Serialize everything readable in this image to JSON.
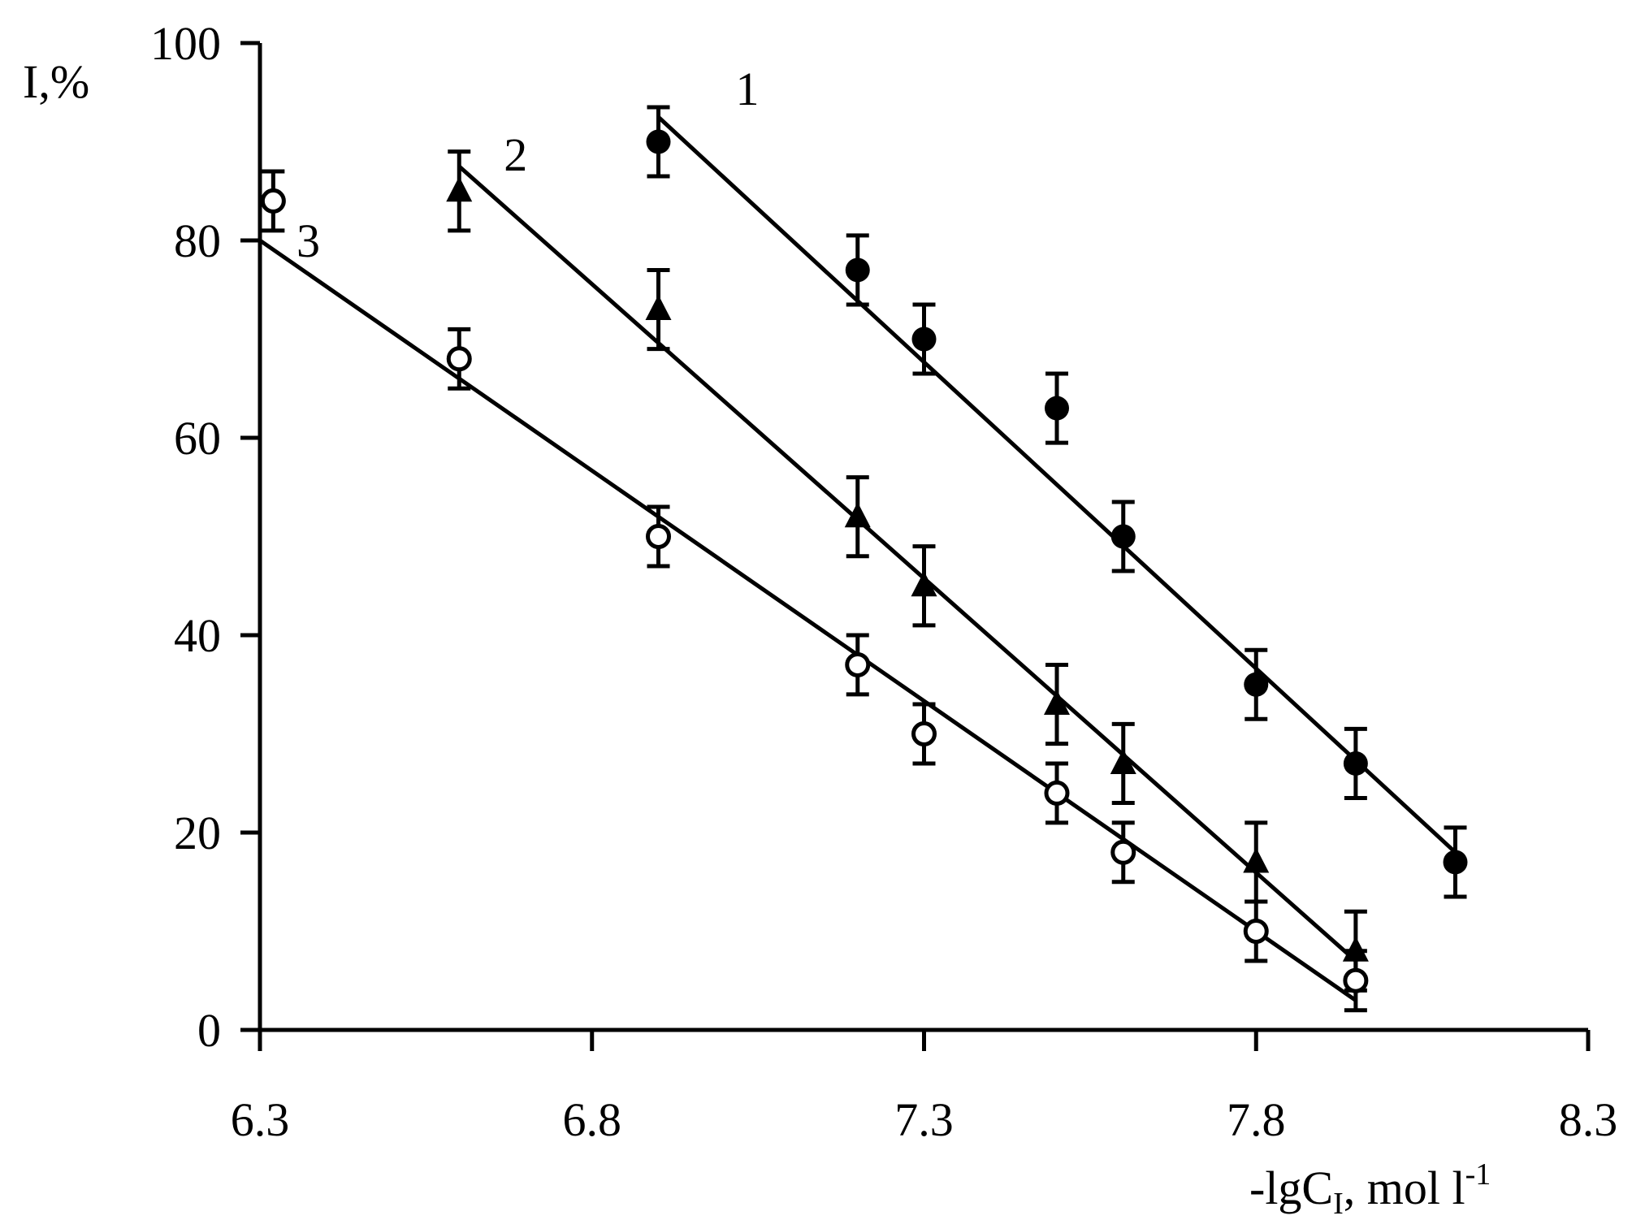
{
  "chart_data": {
    "type": "scatter",
    "title": "",
    "xlabel": "-lgC",
    "xlabel_sub": "I",
    "xlabel_unit": ", mol l",
    "xlabel_sup": "-1",
    "ylabel": "I,%",
    "xlim": [
      6.3,
      8.3
    ],
    "ylim": [
      0,
      100
    ],
    "xticks": [
      6.3,
      6.8,
      7.3,
      7.8,
      8.3
    ],
    "xtick_labels": [
      "6.3",
      "6.8",
      "7.3",
      "7.8",
      "8.3"
    ],
    "yticks": [
      0,
      20,
      40,
      60,
      80,
      100
    ],
    "ytick_labels": [
      "0",
      "20",
      "40",
      "60",
      "80",
      "100"
    ],
    "grid": false,
    "series": [
      {
        "name": "1",
        "marker": "filled-circle",
        "x": [
          6.9,
          7.2,
          7.3,
          7.5,
          7.6,
          7.8,
          7.95,
          8.1
        ],
        "y": [
          90,
          77,
          70,
          63,
          50,
          35,
          27,
          17
        ],
        "err": [
          3.5,
          3.5,
          3.5,
          3.5,
          3.5,
          3.5,
          3.5,
          3.5
        ],
        "fit": {
          "x": [
            6.9,
            8.1
          ],
          "y": [
            92.5,
            18
          ]
        }
      },
      {
        "name": "2",
        "marker": "filled-triangle",
        "x": [
          6.6,
          6.9,
          7.2,
          7.3,
          7.5,
          7.6,
          7.8,
          7.95
        ],
        "y": [
          85,
          73,
          52,
          45,
          33,
          27,
          17,
          8
        ],
        "err": [
          4,
          4,
          4,
          4,
          4,
          4,
          4,
          4
        ],
        "fit": {
          "x": [
            6.6,
            7.95
          ],
          "y": [
            87.5,
            7
          ]
        }
      },
      {
        "name": "3",
        "marker": "open-circle",
        "x": [
          6.32,
          6.6,
          6.9,
          7.2,
          7.3,
          7.5,
          7.6,
          7.8,
          7.95
        ],
        "y": [
          84,
          68,
          50,
          37,
          30,
          24,
          18,
          10,
          5
        ],
        "err": [
          3,
          3,
          3,
          3,
          3,
          3,
          3,
          3,
          3
        ],
        "fit": {
          "x": [
            6.3,
            7.95
          ],
          "y": [
            80,
            3
          ]
        }
      }
    ]
  }
}
